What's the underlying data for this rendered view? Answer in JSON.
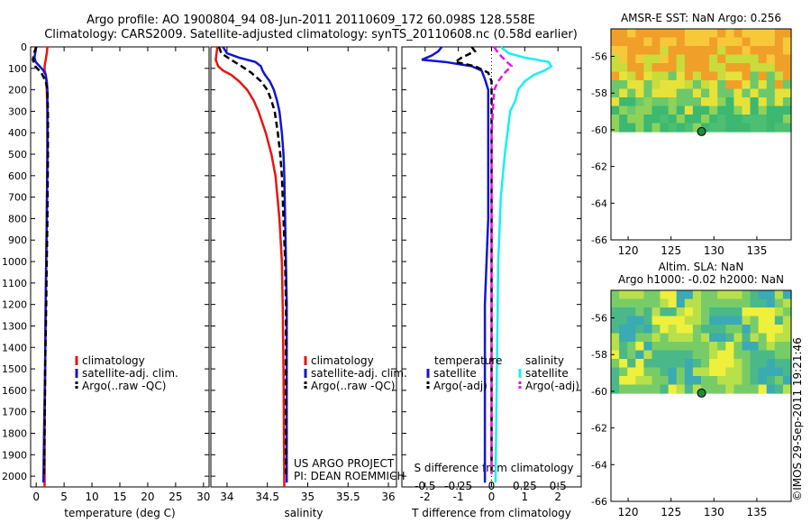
{
  "header": {
    "line1": "Argo profile: AO 1900804_94 08-Jun-2011 20110609_172 60.098S 128.558E",
    "line2": "Climatology: CARS2009. Satellite-adjusted climatology: synTS_20110608.nc (0.58d earlier)"
  },
  "footer_vertical": "©IMOS 29-Sep-2011 19:21:46",
  "colors": {
    "climatology": "#e8140f",
    "satellite": "#1414d2",
    "argo": "#000000",
    "sat_salinity": "#19f0f0",
    "argo_sal_adj": "#e614e6"
  },
  "chart_data": [
    {
      "type": "line",
      "name": "temperature",
      "xlabel": "temperature (deg C)",
      "xlim": [
        -1,
        31
      ],
      "xticks": [
        "0",
        "5",
        "10",
        "15",
        "20",
        "25",
        "30"
      ],
      "ylim": [
        2050,
        0
      ],
      "yticks": [
        "0",
        "100",
        "200",
        "300",
        "400",
        "500",
        "600",
        "700",
        "800",
        "900",
        "1000",
        "1100",
        "1200",
        "1300",
        "1400",
        "1500",
        "1600",
        "1700",
        "1800",
        "1900",
        "2000"
      ],
      "legend": [
        "climatology",
        "satellite-adj. clim.",
        "Argo(..raw -QC)"
      ],
      "series": [
        {
          "name": "climatology",
          "depth": [
            0,
            30,
            60,
            90,
            110,
            130,
            160,
            200,
            300,
            500,
            800,
            1000,
            1200,
            1500,
            1800,
            2050
          ],
          "values": [
            2.0,
            1.9,
            1.7,
            1.5,
            1.5,
            1.7,
            1.8,
            1.9,
            2.0,
            2.0,
            1.9,
            1.8,
            1.7,
            1.6,
            1.5,
            1.5
          ]
        },
        {
          "name": "satellite-adj. clim.",
          "depth": [
            0,
            30,
            50,
            70,
            90,
            110,
            130,
            160,
            200,
            300,
            500,
            800,
            1000,
            1200,
            1500,
            1800,
            2030
          ],
          "values": [
            0.0,
            -0.2,
            -0.3,
            -0.1,
            0.6,
            1.3,
            1.7,
            1.9,
            2.0,
            2.0,
            2.0,
            1.9,
            1.8,
            1.7,
            1.6,
            1.4,
            1.3
          ]
        },
        {
          "name": "Argo(..raw -QC)",
          "depth": [
            0,
            30,
            60,
            90,
            120,
            160,
            200,
            300,
            500,
            800,
            1000,
            1200,
            1500,
            1800,
            1990
          ],
          "values": [
            0.0,
            -0.4,
            -0.6,
            -0.2,
            0.9,
            1.7,
            2.0,
            2.1,
            2.1,
            2.0,
            1.9,
            1.8,
            1.6,
            1.5,
            1.4
          ]
        }
      ]
    },
    {
      "type": "line",
      "name": "salinity",
      "xlabel": "salinity",
      "xlim": [
        33.8,
        36.1
      ],
      "xticks": [
        "34",
        "34.5",
        "35",
        "35.5",
        "36"
      ],
      "ylim": [
        2050,
        0
      ],
      "legend": [
        "climatology",
        "satellite-adj. clim.",
        "Argo(..raw -QC)"
      ],
      "annotation": [
        "US ARGO PROJECT",
        "PI: DEAN ROEMMICH"
      ],
      "series": [
        {
          "name": "climatology",
          "depth": [
            0,
            30,
            60,
            90,
            110,
            130,
            160,
            200,
            250,
            300,
            400,
            500,
            600,
            800,
            1000,
            1200,
            1500,
            2050
          ],
          "values": [
            33.88,
            33.87,
            33.86,
            33.89,
            33.95,
            34.05,
            34.15,
            34.25,
            34.33,
            34.39,
            34.48,
            34.55,
            34.6,
            34.65,
            34.68,
            34.69,
            34.7,
            34.71
          ]
        },
        {
          "name": "satellite-adj. clim.",
          "depth": [
            0,
            30,
            50,
            70,
            90,
            110,
            130,
            160,
            200,
            250,
            300,
            400,
            500,
            600,
            800,
            1000,
            1200,
            1500,
            2030
          ],
          "values": [
            33.95,
            34.0,
            34.15,
            34.35,
            34.42,
            34.44,
            34.47,
            34.53,
            34.58,
            34.62,
            34.65,
            34.68,
            34.7,
            34.71,
            34.72,
            34.73,
            34.74,
            34.74,
            34.74
          ]
        },
        {
          "name": "Argo(..raw -QC)",
          "depth": [
            0,
            30,
            60,
            90,
            120,
            160,
            200,
            250,
            300,
            400,
            500,
            600,
            800,
            1000,
            1200,
            1500,
            1990
          ],
          "values": [
            33.9,
            33.93,
            34.05,
            34.18,
            34.3,
            34.42,
            34.5,
            34.55,
            34.59,
            34.63,
            34.66,
            34.68,
            34.7,
            34.72,
            34.73,
            34.73,
            34.73
          ]
        }
      ]
    },
    {
      "type": "line",
      "name": "differences",
      "xlabel": "T difference from climatology",
      "xlabel_top": "S difference from climatology",
      "xlim": [
        -2.7,
        2.7
      ],
      "xticks": [
        "-2",
        "-1",
        "0",
        "1",
        "2"
      ],
      "xticks_top": [
        "-0.5",
        "-0.25",
        "0",
        "0.25",
        "0.5"
      ],
      "ylim": [
        2050,
        0
      ],
      "legend_left_title": "temperature",
      "legend_right_title": "salinity",
      "legend": [
        "satellite",
        "Argo(-adj)",
        "satellite",
        "Argo(-adj)"
      ],
      "series": [
        {
          "name": "temperature satellite",
          "depth": [
            0,
            20,
            40,
            60,
            70,
            90,
            110,
            150,
            200,
            300,
            500,
            800,
            1200,
            1600,
            2030
          ],
          "values": [
            -1.5,
            -1.6,
            -1.8,
            -2.1,
            -1.4,
            -0.6,
            -0.3,
            -0.2,
            -0.1,
            -0.1,
            -0.1,
            -0.1,
            -0.2,
            -0.2,
            -0.2
          ]
        },
        {
          "name": "temperature Argo(-adj)",
          "depth": [
            0,
            20,
            50,
            70,
            90,
            120,
            160,
            200,
            300,
            500,
            800,
            1200,
            1600,
            1990
          ],
          "values": [
            -0.6,
            -0.5,
            -0.9,
            -1.1,
            -0.5,
            -0.1,
            0.0,
            0.0,
            0.0,
            0.0,
            0.0,
            0.0,
            0.0,
            0.0
          ]
        },
        {
          "name": "salinity satellite",
          "depth": [
            0,
            30,
            50,
            70,
            90,
            110,
            130,
            160,
            200,
            250,
            300,
            400,
            500,
            700,
            1000,
            1500,
            2030
          ],
          "values": [
            0.07,
            0.13,
            0.25,
            0.43,
            0.45,
            0.4,
            0.32,
            0.25,
            0.2,
            0.18,
            0.14,
            0.12,
            0.1,
            0.07,
            0.05,
            0.04,
            0.03
          ]
        },
        {
          "name": "salinity Argo(-adj)",
          "depth": [
            0,
            30,
            60,
            90,
            120,
            160,
            200,
            300,
            400,
            500,
            700,
            1000,
            1500,
            1990
          ],
          "values": [
            0.02,
            0.05,
            0.1,
            0.15,
            0.1,
            0.05,
            0.02,
            0.01,
            0.0,
            0.0,
            0.0,
            0.0,
            0.0,
            0.0
          ]
        }
      ]
    },
    {
      "type": "heatmap",
      "name": "sst_map",
      "title": "AMSR-E SST: NaN Argo: 0.256",
      "xlim": [
        118,
        139
      ],
      "ylim": [
        -66,
        -54.5
      ],
      "xticks": [
        "120",
        "125",
        "130",
        "135"
      ],
      "yticks": [
        "-56",
        "-58",
        "-60",
        "-62",
        "-64",
        "-66"
      ],
      "data_extent_lat_south": -60.1,
      "argo_position": {
        "lon": 128.558,
        "lat": -60.098
      }
    },
    {
      "type": "heatmap",
      "name": "sla_map",
      "title_line1": "Altim. SLA: NaN",
      "title_line2": "Argo h1000: -0.02 h2000: NaN",
      "xlim": [
        118,
        139
      ],
      "ylim": [
        -66,
        -54.5
      ],
      "xticks": [
        "120",
        "125",
        "130",
        "135"
      ],
      "yticks": [
        "-56",
        "-58",
        "-60",
        "-62",
        "-64",
        "-66"
      ],
      "data_extent_lat_south": -60.1,
      "argo_position": {
        "lon": 128.558,
        "lat": -60.098
      }
    }
  ]
}
